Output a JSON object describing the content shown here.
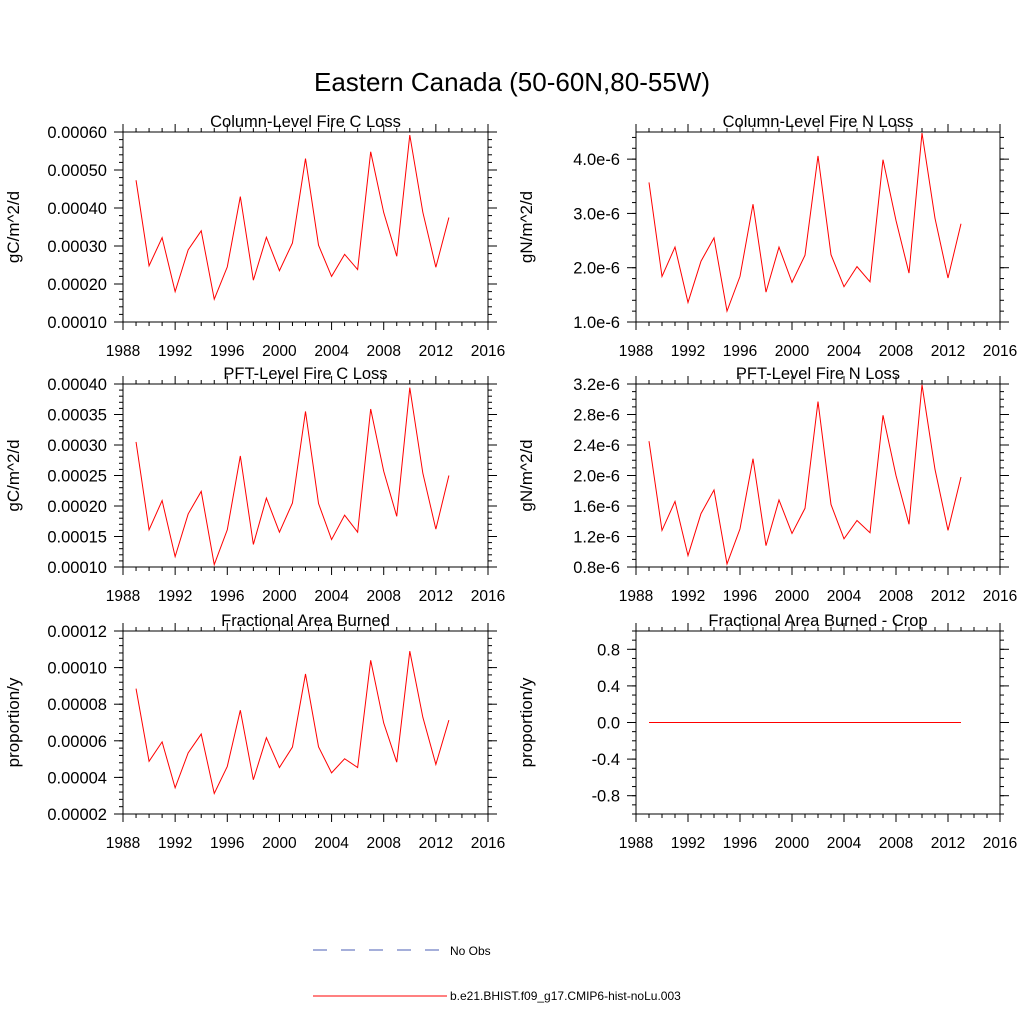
{
  "figure_title": "Eastern Canada (50-60N,80-55W)",
  "legend": [
    {
      "label": "No Obs",
      "color": "#4b5fb5",
      "style": "dashed"
    },
    {
      "label": "b.e21.BHIST.f09_g17.CMIP6-hist-noLu.003",
      "color": "#ff0000",
      "style": "solid"
    }
  ],
  "chart_data": [
    {
      "type": "line",
      "title": "Column-Level Fire C Loss",
      "ylabel": "gC/m^2/d",
      "xlim": [
        1988,
        2016
      ],
      "ylim": [
        0.0001,
        0.0006
      ],
      "x_ticks": [
        "1988",
        "1992",
        "1996",
        "2000",
        "2004",
        "2008",
        "2012",
        "2016"
      ],
      "y_ticks": [
        {
          "v": 0.0001,
          "label": "0.00010"
        },
        {
          "v": 0.0002,
          "label": "0.00020"
        },
        {
          "v": 0.0003,
          "label": "0.00030"
        },
        {
          "v": 0.0004,
          "label": "0.00040"
        },
        {
          "v": 0.0005,
          "label": "0.00050"
        },
        {
          "v": 0.0006,
          "label": "0.00060"
        }
      ],
      "y_minor_step": 2e-05,
      "series": [
        {
          "color": "#ff0000",
          "x": [
            1989,
            1990,
            1991,
            1992,
            1993,
            1994,
            1995,
            1996,
            1997,
            1998,
            1999,
            2000,
            2001,
            2002,
            2003,
            2004,
            2005,
            2006,
            2007,
            2008,
            2009,
            2010,
            2011,
            2012,
            2013
          ],
          "y": [
            0.000473,
            0.000248,
            0.000322,
            0.00018,
            0.00029,
            0.00034,
            0.00016,
            0.000245,
            0.00043,
            0.00021,
            0.000323,
            0.000235,
            0.000308,
            0.00053,
            0.000302,
            0.00022,
            0.000278,
            0.000238,
            0.000548,
            0.000388,
            0.000273,
            0.000592,
            0.000389,
            0.000244,
            0.000375
          ]
        }
      ]
    },
    {
      "type": "line",
      "title": "Column-Level Fire N Loss",
      "ylabel": "gN/m^2/d",
      "xlim": [
        1988,
        2016
      ],
      "ylim": [
        1e-06,
        4.5e-06
      ],
      "x_ticks": [
        "1988",
        "1992",
        "1996",
        "2000",
        "2004",
        "2008",
        "2012",
        "2016"
      ],
      "y_ticks": [
        {
          "v": 1e-06,
          "label": "1.0e-6"
        },
        {
          "v": 2e-06,
          "label": "2.0e-6"
        },
        {
          "v": 3e-06,
          "label": "3.0e-6"
        },
        {
          "v": 4e-06,
          "label": "4.0e-6"
        }
      ],
      "y_minor_step": 2e-07,
      "series": [
        {
          "color": "#ff0000",
          "x": [
            1989,
            1990,
            1991,
            1992,
            1993,
            1994,
            1995,
            1996,
            1997,
            1998,
            1999,
            2000,
            2001,
            2002,
            2003,
            2004,
            2005,
            2006,
            2007,
            2008,
            2009,
            2010,
            2011,
            2012,
            2013
          ],
          "y": [
            3.57e-06,
            1.84e-06,
            2.38e-06,
            1.36e-06,
            2.12e-06,
            2.55e-06,
            1.2e-06,
            1.84e-06,
            3.17e-06,
            1.55e-06,
            2.38e-06,
            1.73e-06,
            2.23e-06,
            4.06e-06,
            2.24e-06,
            1.65e-06,
            2.02e-06,
            1.74e-06,
            3.99e-06,
            2.87e-06,
            1.9e-06,
            4.48e-06,
            2.91e-06,
            1.81e-06,
            2.81e-06
          ]
        }
      ]
    },
    {
      "type": "line",
      "title": "PFT-Level Fire C Loss",
      "ylabel": "gC/m^2/d",
      "xlim": [
        1988,
        2016
      ],
      "ylim": [
        0.0001,
        0.0004
      ],
      "x_ticks": [
        "1988",
        "1992",
        "1996",
        "2000",
        "2004",
        "2008",
        "2012",
        "2016"
      ],
      "y_ticks": [
        {
          "v": 0.0001,
          "label": "0.00010"
        },
        {
          "v": 0.00015,
          "label": "0.00015"
        },
        {
          "v": 0.0002,
          "label": "0.00020"
        },
        {
          "v": 0.00025,
          "label": "0.00025"
        },
        {
          "v": 0.0003,
          "label": "0.00030"
        },
        {
          "v": 0.00035,
          "label": "0.00035"
        },
        {
          "v": 0.0004,
          "label": "0.00040"
        }
      ],
      "y_minor_step": 1e-05,
      "series": [
        {
          "color": "#ff0000",
          "x": [
            1989,
            1990,
            1991,
            1992,
            1993,
            1994,
            1995,
            1996,
            1997,
            1998,
            1999,
            2000,
            2001,
            2002,
            2003,
            2004,
            2005,
            2006,
            2007,
            2008,
            2009,
            2010,
            2011,
            2012,
            2013
          ],
          "y": [
            0.000305,
            0.000161,
            0.000209,
            0.000117,
            0.000187,
            0.000224,
            0.000104,
            0.000161,
            0.000282,
            0.000137,
            0.000213,
            0.000157,
            0.000205,
            0.000355,
            0.000204,
            0.000145,
            0.000185,
            0.000157,
            0.000359,
            0.000257,
            0.000183,
            0.000394,
            0.000254,
            0.000162,
            0.00025
          ]
        }
      ]
    },
    {
      "type": "line",
      "title": "PFT-Level Fire N Loss",
      "ylabel": "gN/m^2/d",
      "xlim": [
        1988,
        2016
      ],
      "ylim": [
        8e-07,
        3.2e-06
      ],
      "x_ticks": [
        "1988",
        "1992",
        "1996",
        "2000",
        "2004",
        "2008",
        "2012",
        "2016"
      ],
      "y_ticks": [
        {
          "v": 8e-07,
          "label": "0.8e-6"
        },
        {
          "v": 1.2e-06,
          "label": "1.2e-6"
        },
        {
          "v": 1.6e-06,
          "label": "1.6e-6"
        },
        {
          "v": 2e-06,
          "label": "2.0e-6"
        },
        {
          "v": 2.4e-06,
          "label": "2.4e-6"
        },
        {
          "v": 2.8e-06,
          "label": "2.8e-6"
        },
        {
          "v": 3.2e-06,
          "label": "3.2e-6"
        }
      ],
      "y_minor_step": 1e-07,
      "series": [
        {
          "color": "#ff0000",
          "x": [
            1989,
            1990,
            1991,
            1992,
            1993,
            1994,
            1995,
            1996,
            1997,
            1998,
            1999,
            2000,
            2001,
            2002,
            2003,
            2004,
            2005,
            2006,
            2007,
            2008,
            2009,
            2010,
            2011,
            2012,
            2013
          ],
          "y": [
            2.45e-06,
            1.28e-06,
            1.66e-06,
            9.5e-07,
            1.5e-06,
            1.81e-06,
            8.4e-07,
            1.3e-06,
            2.22e-06,
            1.08e-06,
            1.68e-06,
            1.24e-06,
            1.57e-06,
            2.97e-06,
            1.62e-06,
            1.17e-06,
            1.41e-06,
            1.25e-06,
            2.79e-06,
            2e-06,
            1.36e-06,
            3.19e-06,
            2.08e-06,
            1.28e-06,
            1.98e-06
          ]
        }
      ]
    },
    {
      "type": "line",
      "title": "Fractional Area Burned",
      "ylabel": "proportion/y",
      "xlim": [
        1988,
        2016
      ],
      "ylim": [
        2e-05,
        0.00012
      ],
      "x_ticks": [
        "1988",
        "1992",
        "1996",
        "2000",
        "2004",
        "2008",
        "2012",
        "2016"
      ],
      "y_ticks": [
        {
          "v": 2e-05,
          "label": "0.00002"
        },
        {
          "v": 4e-05,
          "label": "0.00004"
        },
        {
          "v": 6e-05,
          "label": "0.00006"
        },
        {
          "v": 8e-05,
          "label": "0.00008"
        },
        {
          "v": 0.0001,
          "label": "0.00010"
        },
        {
          "v": 0.00012,
          "label": "0.00012"
        }
      ],
      "y_minor_step": 4e-06,
      "series": [
        {
          "color": "#ff0000",
          "x": [
            1989,
            1990,
            1991,
            1992,
            1993,
            1994,
            1995,
            1996,
            1997,
            1998,
            1999,
            2000,
            2001,
            2002,
            2003,
            2004,
            2005,
            2006,
            2007,
            2008,
            2009,
            2010,
            2011,
            2012,
            2013
          ],
          "y": [
            8.85e-05,
            4.88e-05,
            5.94e-05,
            3.43e-05,
            5.34e-05,
            6.37e-05,
            3.12e-05,
            4.6e-05,
            7.67e-05,
            3.87e-05,
            6.17e-05,
            4.54e-05,
            5.66e-05,
            9.65e-05,
            5.67e-05,
            4.25e-05,
            5.02e-05,
            4.54e-05,
            0.000104,
            6.97e-05,
            4.83e-05,
            0.000109,
            7.29e-05,
            4.71e-05,
            7.13e-05
          ]
        }
      ]
    },
    {
      "type": "line",
      "title": "Fractional Area Burned - Crop",
      "ylabel": "proportion/y",
      "xlim": [
        1988,
        2016
      ],
      "ylim": [
        -1.0,
        1.0
      ],
      "x_ticks": [
        "1988",
        "1992",
        "1996",
        "2000",
        "2004",
        "2008",
        "2012",
        "2016"
      ],
      "y_ticks": [
        {
          "v": -0.8,
          "label": "-0.8"
        },
        {
          "v": -0.4,
          "label": "-0.4"
        },
        {
          "v": 0.0,
          "label": "0.0"
        },
        {
          "v": 0.4,
          "label": "0.4"
        },
        {
          "v": 0.8,
          "label": "0.8"
        }
      ],
      "y_minor_step": 0.1,
      "series": [
        {
          "color": "#ff0000",
          "x": [
            1989,
            1990,
            1991,
            1992,
            1993,
            1994,
            1995,
            1996,
            1997,
            1998,
            1999,
            2000,
            2001,
            2002,
            2003,
            2004,
            2005,
            2006,
            2007,
            2008,
            2009,
            2010,
            2011,
            2012,
            2013
          ],
          "y": [
            0,
            0,
            0,
            0,
            0,
            0,
            0,
            0,
            0,
            0,
            0,
            0,
            0,
            0,
            0,
            0,
            0,
            0,
            0,
            0,
            0,
            0,
            0,
            0,
            0
          ]
        }
      ]
    }
  ]
}
